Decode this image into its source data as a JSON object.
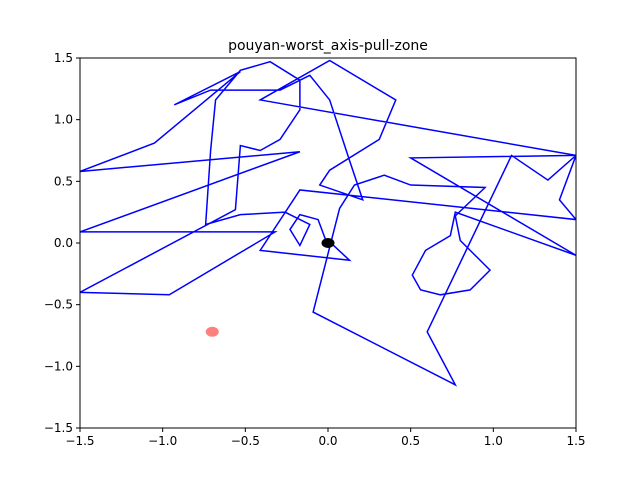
{
  "chart_data": {
    "type": "line",
    "title": "pouyan-worst_axis-pull-zone",
    "xlim": [
      -1.5,
      1.5
    ],
    "ylim": [
      -1.5,
      1.5
    ],
    "xticks": [
      {
        "value": -1.5,
        "label": "−1.5"
      },
      {
        "value": -1.0,
        "label": "−1.0"
      },
      {
        "value": -0.5,
        "label": "−0.5"
      },
      {
        "value": 0.0,
        "label": "0.0"
      },
      {
        "value": 0.5,
        "label": "0.5"
      },
      {
        "value": 1.0,
        "label": "1.0"
      },
      {
        "value": 1.5,
        "label": "1.5"
      }
    ],
    "yticks": [
      {
        "value": -1.5,
        "label": "−1.5"
      },
      {
        "value": -1.0,
        "label": "−1.0"
      },
      {
        "value": -0.5,
        "label": "−0.5"
      },
      {
        "value": 0.0,
        "label": "0.0"
      },
      {
        "value": 0.5,
        "label": "0.5"
      },
      {
        "value": 1.0,
        "label": "1.0"
      },
      {
        "value": 1.5,
        "label": "1.5"
      }
    ],
    "series": [
      {
        "color": "#0000ff",
        "marker": "line",
        "x": [
          -0.01,
          -0.06,
          -0.17,
          -0.23,
          -0.17,
          -0.11,
          -0.26,
          -0.53,
          -0.74,
          -0.71,
          -0.68,
          -0.53,
          -0.35,
          -0.17,
          -0.17,
          -0.29,
          -0.41,
          -0.53,
          -0.56,
          -1.5,
          -0.96,
          -0.32,
          -1.5,
          -0.17,
          -1.5,
          -1.05,
          -0.53,
          -0.93,
          -0.71,
          -0.29,
          -0.11,
          0.01,
          0.13,
          0.21,
          -0.05,
          0.01,
          0.31,
          0.41,
          0.01,
          -0.41,
          1.5,
          0.5,
          1.5,
          0.77,
          0.74,
          0.59,
          0.51,
          0.56,
          0.68,
          0.86,
          0.98,
          0.92,
          0.86,
          0.8,
          0.77,
          0.95,
          0.5,
          0.34,
          0.16,
          0.07,
          -0.09,
          0.77,
          0.6,
          1.11,
          1.33,
          1.5,
          1.4,
          1.5,
          -0.17,
          -0.41,
          0.13,
          0.01
        ],
        "y": [
          0.01,
          0.19,
          0.23,
          0.11,
          -0.02,
          0.15,
          0.25,
          0.23,
          0.15,
          0.75,
          1.16,
          1.4,
          1.47,
          1.32,
          1.08,
          0.84,
          0.75,
          0.79,
          0.27,
          -0.4,
          -0.42,
          0.09,
          0.09,
          0.74,
          0.58,
          0.81,
          1.39,
          1.12,
          1.24,
          1.24,
          1.36,
          1.16,
          0.67,
          0.35,
          0.47,
          0.59,
          0.84,
          1.16,
          1.48,
          1.16,
          0.71,
          0.69,
          -0.1,
          0.25,
          0.06,
          -0.06,
          -0.26,
          -0.38,
          -0.42,
          -0.38,
          -0.22,
          -0.14,
          -0.06,
          0.02,
          0.22,
          0.45,
          0.47,
          0.55,
          0.47,
          0.28,
          -0.56,
          -1.15,
          -0.72,
          0.71,
          0.51,
          0.71,
          0.35,
          0.19,
          0.43,
          -0.06,
          -0.14,
          0.01
        ]
      },
      {
        "color": "#000000",
        "marker": "dot",
        "x": [
          0.0
        ],
        "y": [
          0.0
        ]
      },
      {
        "color": "#ff0000",
        "marker": "dot",
        "alpha": 0.5,
        "x": [
          -0.7
        ],
        "y": [
          -0.72
        ]
      }
    ]
  }
}
